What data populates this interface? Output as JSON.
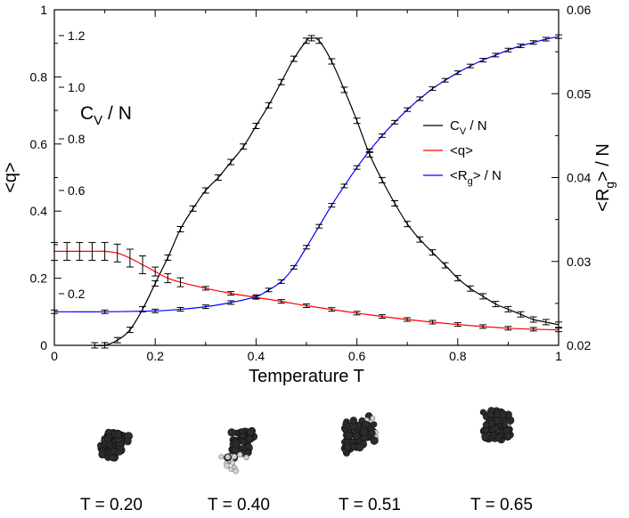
{
  "chart_data": {
    "type": "line",
    "xlabel": "Temperature  T",
    "xlim": [
      0,
      1
    ],
    "x_ticks": [
      "0",
      "0.2",
      "0.4",
      "0.6",
      "0.8",
      "1"
    ],
    "x_tick_values": [
      0,
      0.2,
      0.4,
      0.6,
      0.8,
      1
    ],
    "left_axis": {
      "label": "<q>",
      "ylim": [
        0,
        1
      ],
      "ticks": [
        "0",
        "0.2",
        "0.4",
        "0.6",
        "0.8",
        "1"
      ],
      "tick_values": [
        0,
        0.2,
        0.4,
        0.6,
        0.8,
        1
      ]
    },
    "right_axis": {
      "label_main": "<R",
      "label_sub": "g",
      "label_tail": "> / N",
      "ylim": [
        0.02,
        0.06
      ],
      "ticks": [
        "0.02",
        "0.03",
        "0.04",
        "0.05",
        "0.06"
      ],
      "tick_values": [
        0.02,
        0.03,
        0.04,
        0.05,
        0.06
      ]
    },
    "cv_axis": {
      "label_main": "C",
      "label_sub": "V",
      "label_tail": " / N",
      "ylim": [
        0,
        1.3
      ],
      "ticks": [
        "0.2",
        "0.6",
        "0.8",
        "1.0",
        "1.2"
      ],
      "tick_values": [
        0.2,
        0.6,
        0.8,
        1.0,
        1.2
      ]
    },
    "legend": [
      {
        "main": "C",
        "sub": "V",
        "tail": " / N",
        "color": "#000000"
      },
      {
        "main": "<q>",
        "sub": "",
        "tail": "",
        "color": "#ff0000"
      },
      {
        "main": "<R",
        "sub": "g",
        "tail": "> / N",
        "color": "#0000ff"
      }
    ],
    "series": [
      {
        "name": "C_V / N",
        "axis": "cv",
        "color": "#000000",
        "x": [
          0.08,
          0.1,
          0.125,
          0.15,
          0.175,
          0.2,
          0.225,
          0.25,
          0.275,
          0.3,
          0.325,
          0.35,
          0.375,
          0.4,
          0.425,
          0.45,
          0.475,
          0.5,
          0.51,
          0.525,
          0.55,
          0.575,
          0.6,
          0.625,
          0.65,
          0.675,
          0.7,
          0.725,
          0.75,
          0.775,
          0.8,
          0.825,
          0.85,
          0.875,
          0.9,
          0.925,
          0.95,
          0.975,
          1.0
        ],
        "values": [
          0.0,
          0.0,
          0.02,
          0.06,
          0.14,
          0.24,
          0.34,
          0.45,
          0.53,
          0.6,
          0.65,
          0.71,
          0.77,
          0.85,
          0.93,
          1.02,
          1.11,
          1.18,
          1.19,
          1.18,
          1.1,
          0.99,
          0.87,
          0.74,
          0.64,
          0.55,
          0.47,
          0.41,
          0.36,
          0.31,
          0.26,
          0.22,
          0.19,
          0.16,
          0.14,
          0.12,
          0.1,
          0.09,
          0.08
        ],
        "error_bars": true
      },
      {
        "name": "<q>",
        "axis": "left",
        "color": "#ff0000",
        "x": [
          0.0,
          0.025,
          0.05,
          0.075,
          0.1,
          0.125,
          0.15,
          0.175,
          0.2,
          0.225,
          0.25,
          0.3,
          0.35,
          0.4,
          0.45,
          0.5,
          0.55,
          0.6,
          0.65,
          0.7,
          0.75,
          0.8,
          0.85,
          0.9,
          0.95,
          1.0
        ],
        "values": [
          0.28,
          0.28,
          0.28,
          0.28,
          0.28,
          0.275,
          0.26,
          0.24,
          0.22,
          0.2,
          0.188,
          0.17,
          0.155,
          0.143,
          0.131,
          0.118,
          0.107,
          0.096,
          0.086,
          0.077,
          0.069,
          0.062,
          0.056,
          0.051,
          0.048,
          0.046
        ],
        "error_bars": true
      },
      {
        "name": "<R_g> / N",
        "axis": "right",
        "color": "#0000ff",
        "x": [
          0.0,
          0.1,
          0.2,
          0.25,
          0.3,
          0.35,
          0.4,
          0.425,
          0.45,
          0.475,
          0.5,
          0.525,
          0.55,
          0.575,
          0.6,
          0.625,
          0.65,
          0.675,
          0.7,
          0.725,
          0.75,
          0.775,
          0.8,
          0.825,
          0.85,
          0.875,
          0.9,
          0.925,
          0.95,
          0.975,
          1.0
        ],
        "values": [
          0.024,
          0.024,
          0.0241,
          0.0243,
          0.0246,
          0.0251,
          0.0258,
          0.0266,
          0.0276,
          0.0293,
          0.0317,
          0.0342,
          0.0367,
          0.039,
          0.0412,
          0.0432,
          0.045,
          0.0466,
          0.0481,
          0.0494,
          0.0506,
          0.0516,
          0.0525,
          0.0533,
          0.054,
          0.0546,
          0.0552,
          0.0557,
          0.0561,
          0.0565,
          0.0568
        ],
        "error_bars": true
      }
    ]
  },
  "configurations": [
    {
      "caption": "T = 0.20"
    },
    {
      "caption": "T = 0.40"
    },
    {
      "caption": "T = 0.51"
    },
    {
      "caption": "T = 0.65"
    }
  ]
}
